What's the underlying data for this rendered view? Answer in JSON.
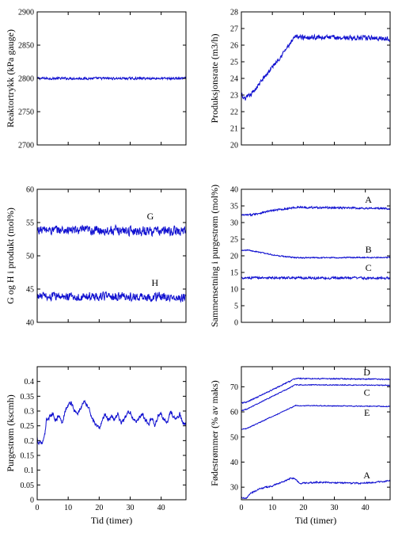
{
  "chart_data": [
    {
      "type": "line",
      "ylabel": "Reaktortrykk (kPa gauge)",
      "xlabel": "",
      "xlim": [
        0,
        48
      ],
      "ylim": [
        2700,
        2900
      ],
      "xticks": [
        0,
        10,
        20,
        30,
        40
      ],
      "yticks": [
        2700,
        2750,
        2800,
        2850,
        2900
      ],
      "show_xtick_labels": false,
      "series": [
        {
          "x": [
            0,
            48
          ],
          "y": [
            2800,
            2800
          ],
          "noise": 1.5
        }
      ],
      "annotations": []
    },
    {
      "type": "line",
      "ylabel": "Produksjonsrate (m3/h)",
      "xlabel": "",
      "xlim": [
        0,
        48
      ],
      "ylim": [
        20,
        28
      ],
      "xticks": [
        0,
        10,
        20,
        30,
        40
      ],
      "yticks": [
        20,
        21,
        22,
        23,
        24,
        25,
        26,
        27,
        28
      ],
      "show_xtick_labels": false,
      "series": [
        {
          "x": [
            0,
            0.5,
            1.5,
            3,
            17.5,
            48
          ],
          "y": [
            23.1,
            22.8,
            22.8,
            23.0,
            26.5,
            26.4
          ],
          "noise": 0.12
        }
      ],
      "annotations": []
    },
    {
      "type": "line",
      "ylabel": "G og H i produkt (mol%)",
      "xlabel": "",
      "xlim": [
        0,
        48
      ],
      "ylim": [
        40,
        60
      ],
      "xticks": [
        0,
        10,
        20,
        30,
        40
      ],
      "yticks": [
        40,
        45,
        50,
        55,
        60
      ],
      "show_xtick_labels": false,
      "series": [
        {
          "x": [
            0,
            48
          ],
          "y": [
            53.9,
            53.7
          ],
          "noise": 0.6
        },
        {
          "x": [
            0,
            48
          ],
          "y": [
            43.9,
            43.8
          ],
          "noise": 0.55
        }
      ],
      "annotations": [
        {
          "text": "G",
          "x": 36.5,
          "y": 55.5
        },
        {
          "text": "H",
          "x": 38,
          "y": 45.5
        }
      ]
    },
    {
      "type": "line",
      "ylabel": "Sammensetning i purgestrøm (mol%)",
      "xlabel": "",
      "xlim": [
        0,
        48
      ],
      "ylim": [
        0,
        40
      ],
      "xticks": [
        0,
        10,
        20,
        30,
        40
      ],
      "yticks": [
        0,
        5,
        10,
        15,
        20,
        25,
        30,
        35,
        40
      ],
      "show_xtick_labels": false,
      "series": [
        {
          "x": [
            0,
            3,
            10,
            18,
            48
          ],
          "y": [
            32.2,
            32.3,
            33.6,
            34.6,
            34.2
          ],
          "noise": 0.25
        },
        {
          "x": [
            0,
            2,
            5,
            12,
            18,
            48
          ],
          "y": [
            21.5,
            21.8,
            21.2,
            20.0,
            19.4,
            19.5
          ],
          "noise": 0.15
        },
        {
          "x": [
            0,
            48
          ],
          "y": [
            13.4,
            13.3
          ],
          "noise": 0.3
        }
      ],
      "annotations": [
        {
          "text": "A",
          "x": 41,
          "y": 36
        },
        {
          "text": "B",
          "x": 41,
          "y": 21
        },
        {
          "text": "C",
          "x": 41,
          "y": 15.5
        }
      ]
    },
    {
      "type": "line",
      "ylabel": "Purgestrøm (kscmh)",
      "xlabel": "Tid (timer)",
      "xlim": [
        0,
        48
      ],
      "ylim": [
        0,
        0.45
      ],
      "xticks": [
        0,
        10,
        20,
        30,
        40
      ],
      "yticks": [
        0,
        0.05,
        0.1,
        0.15,
        0.2,
        0.25,
        0.3,
        0.35,
        0.4
      ],
      "show_xtick_labels": true,
      "series": [
        {
          "x": [
            0,
            0.5,
            1,
            1.5,
            2,
            2.5,
            3,
            4,
            5,
            6,
            7,
            8,
            9,
            10,
            11,
            12,
            13,
            14,
            15,
            16,
            17,
            18,
            19,
            20,
            21,
            22,
            23,
            24,
            25,
            26,
            27,
            28,
            29,
            30,
            31,
            32,
            33,
            34,
            35,
            36,
            37,
            38,
            39,
            40,
            41,
            42,
            43,
            44,
            45,
            46,
            47,
            48
          ],
          "y": [
            0.21,
            0.19,
            0.2,
            0.19,
            0.2,
            0.22,
            0.27,
            0.28,
            0.29,
            0.27,
            0.285,
            0.26,
            0.3,
            0.32,
            0.33,
            0.3,
            0.29,
            0.31,
            0.33,
            0.32,
            0.3,
            0.27,
            0.25,
            0.24,
            0.27,
            0.29,
            0.27,
            0.285,
            0.27,
            0.29,
            0.26,
            0.27,
            0.29,
            0.3,
            0.27,
            0.26,
            0.28,
            0.29,
            0.27,
            0.255,
            0.28,
            0.25,
            0.285,
            0.29,
            0.27,
            0.26,
            0.3,
            0.28,
            0.27,
            0.29,
            0.26,
            0.255
          ],
          "noise": 0.006
        }
      ],
      "annotations": []
    },
    {
      "type": "line",
      "ylabel": "Fødestrømmer (% av maks)",
      "xlabel": "Tid (timer)",
      "xlim": [
        0,
        48
      ],
      "ylim": [
        25,
        78
      ],
      "xticks": [
        0,
        10,
        20,
        30,
        40
      ],
      "yticks": [
        30,
        40,
        50,
        60,
        70
      ],
      "show_xtick_labels": true,
      "series": [
        {
          "x": [
            0,
            2,
            17.5,
            48
          ],
          "y": [
            63.5,
            64,
            73.3,
            73.0
          ],
          "noise": 0.2
        },
        {
          "x": [
            0,
            2,
            17.5,
            48
          ],
          "y": [
            60.5,
            61.2,
            70.8,
            70.6
          ],
          "noise": 0.15
        },
        {
          "x": [
            0,
            2,
            17.5,
            48
          ],
          "y": [
            53,
            53.5,
            62.5,
            62.2
          ],
          "noise": 0.15
        },
        {
          "x": [
            0,
            1.5,
            3,
            6,
            10,
            14,
            16,
            17,
            19,
            25,
            30,
            38,
            48
          ],
          "y": [
            26,
            25.5,
            27.5,
            29.5,
            30.5,
            32.5,
            33.5,
            33.5,
            31.5,
            32,
            31.8,
            31.5,
            32.5
          ],
          "noise": 0.25
        }
      ],
      "annotations": [
        {
          "text": "D",
          "x": 40.5,
          "y": 74.5
        },
        {
          "text": "C",
          "x": 40.5,
          "y": 66.5
        },
        {
          "text": "E",
          "x": 40.5,
          "y": 58.5
        },
        {
          "text": "A",
          "x": 40.5,
          "y": 33.5
        }
      ]
    }
  ]
}
